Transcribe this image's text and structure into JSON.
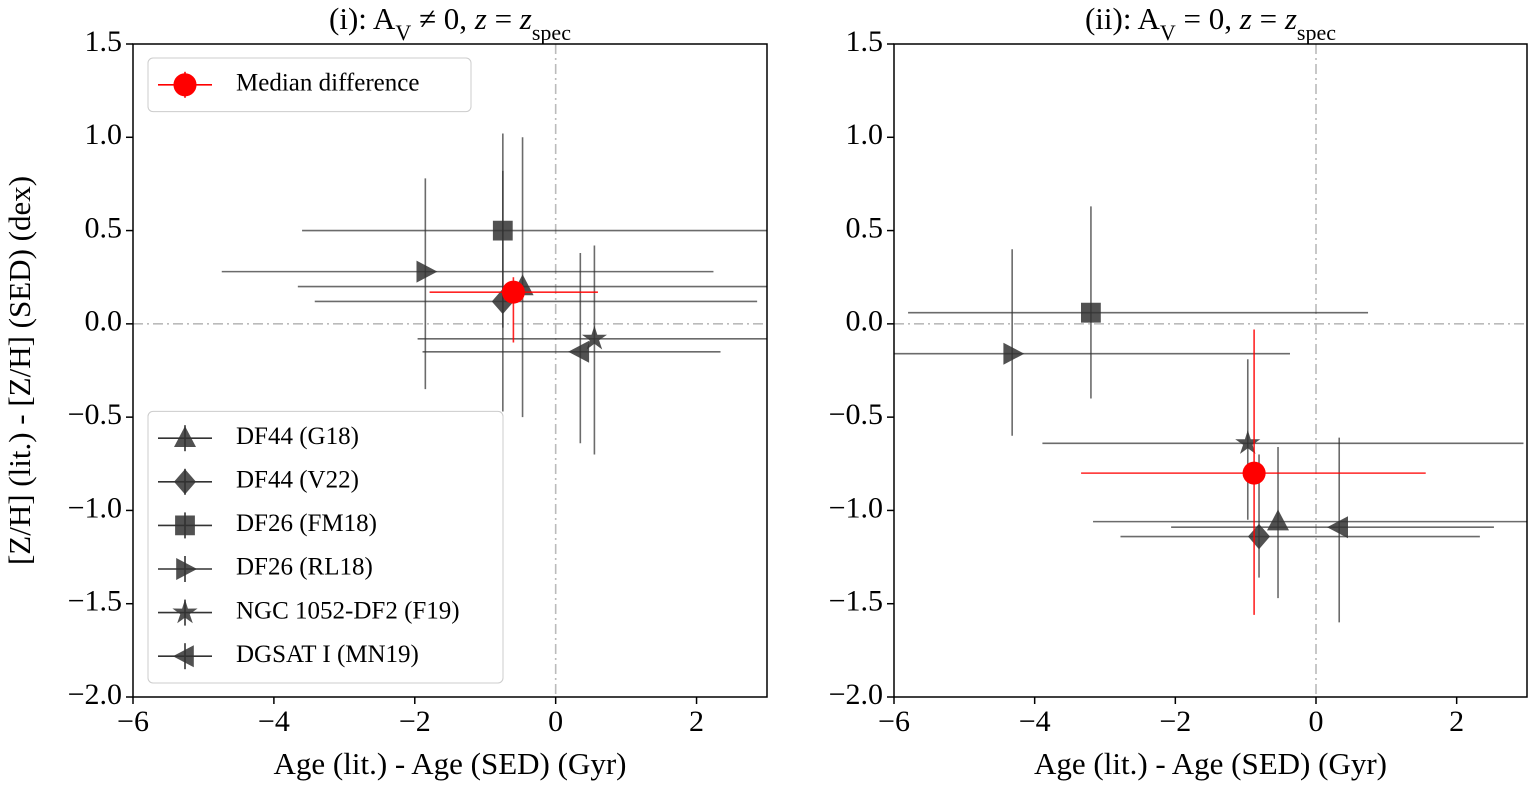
{
  "chart_data": [
    {
      "type": "scatter",
      "title": [
        {
          "text": "(i): A"
        },
        {
          "text": "V",
          "sub": true
        },
        {
          "text": " ≠ 0, "
        },
        {
          "text": "z",
          "italic": true
        },
        {
          "text": " = "
        },
        {
          "text": "z",
          "italic": true
        },
        {
          "text": "spec",
          "sub": true
        }
      ],
      "xlabel": "Age (lit.) - Age (SED) (Gyr)",
      "ylabel": "[Z/H] (lit.) - [Z/H] (SED) (dex)",
      "xlim": [
        -6,
        3
      ],
      "ylim": [
        -2.0,
        1.5
      ],
      "xticks": [
        {
          "value": -6,
          "label": "−6"
        },
        {
          "value": -4,
          "label": "−4"
        },
        {
          "value": -2,
          "label": "−2"
        },
        0,
        2
      ],
      "yticks": [
        {
          "value": -2.0,
          "label": "−2.0"
        },
        {
          "value": -1.5,
          "label": "−1.5"
        },
        {
          "value": -1.0,
          "label": "−1.0"
        },
        {
          "value": -0.5,
          "label": "−0.5"
        },
        {
          "value": 0,
          "label": "0.0"
        },
        0.5,
        {
          "value": 1.0,
          "label": "1.0"
        },
        1.5
      ],
      "vline": 0,
      "hline": 0,
      "series": [
        {
          "name": "DF44 (G18)",
          "marker": "triangle-up",
          "color": "#333333",
          "legend": "lower left",
          "x": [
            -0.47
          ],
          "y": [
            0.2
          ],
          "x_range": [
            -3.66,
            3.3
          ],
          "y_range": [
            1.0,
            -0.5
          ]
        },
        {
          "name": "DF44 (V22)",
          "marker": "diamond",
          "color": "#333333",
          "legend": "lower left",
          "x": [
            -0.75
          ],
          "y": [
            0.12
          ],
          "x_range": [
            -3.42,
            2.86
          ],
          "y_range": [
            0.82,
            -0.47
          ]
        },
        {
          "name": "DF26 (FM18)",
          "marker": "square",
          "color": "#333333",
          "legend": "lower left",
          "x": [
            -0.75
          ],
          "y": [
            0.5
          ],
          "x_range": [
            -3.6,
            3.3
          ],
          "y_range": [
            1.02,
            -0.02
          ]
        },
        {
          "name": "DF26 (RL18)",
          "marker": "triangle-right",
          "color": "#333333",
          "legend": "lower left",
          "x": [
            -1.85
          ],
          "y": [
            0.28
          ],
          "x_range": [
            -4.74,
            2.24
          ],
          "y_range": [
            0.78,
            -0.35
          ]
        },
        {
          "name": "NGC 1052-DF2 (F19)",
          "marker": "star",
          "color": "#333333",
          "legend": "lower left",
          "x": [
            0.55
          ],
          "y": [
            -0.08
          ],
          "x_range": [
            -1.96,
            3.3
          ],
          "y_range": [
            0.42,
            -0.7
          ]
        },
        {
          "name": "DGSAT I (MN19)",
          "marker": "triangle-left",
          "color": "#333333",
          "legend": "lower left",
          "x": [
            0.35
          ],
          "y": [
            -0.15
          ],
          "x_range": [
            -1.89,
            2.34
          ],
          "y_range": [
            0.38,
            -0.64
          ]
        },
        {
          "name": "Median difference",
          "marker": "circle",
          "color": "#ff0000",
          "legend": "upper left",
          "x": [
            -0.6
          ],
          "y": [
            0.17
          ],
          "x_range": [
            -1.79,
            0.6
          ],
          "y_range": [
            0.25,
            -0.1
          ]
        }
      ]
    },
    {
      "type": "scatter",
      "title": [
        {
          "text": "(ii): A"
        },
        {
          "text": "V",
          "sub": true
        },
        {
          "text": " = 0, "
        },
        {
          "text": "z",
          "italic": true
        },
        {
          "text": " = "
        },
        {
          "text": "z",
          "italic": true
        },
        {
          "text": "spec",
          "sub": true
        }
      ],
      "xlabel": "Age (lit.) - Age (SED) (Gyr)",
      "xlim": [
        -6,
        3
      ],
      "ylim": [
        -2.0,
        1.5
      ],
      "xticks": [
        {
          "value": -6,
          "label": "−6"
        },
        {
          "value": -4,
          "label": "−4"
        },
        {
          "value": -2,
          "label": "−2"
        },
        0,
        2
      ],
      "yticks": [
        {
          "value": -2.0,
          "label": "−2.0"
        },
        {
          "value": -1.5,
          "label": "−1.5"
        },
        {
          "value": -1.0,
          "label": "−1.0"
        },
        {
          "value": -0.5,
          "label": "−0.5"
        },
        {
          "value": 0,
          "label": "0.0"
        },
        0.5,
        {
          "value": 1.0,
          "label": "1.0"
        },
        1.5
      ],
      "vline": 0,
      "hline": 0,
      "series": [
        {
          "marker": "triangle-up",
          "color": "#333333",
          "x": [
            -0.54
          ],
          "y": [
            -1.06
          ],
          "x_range": [
            -3.17,
            3.3
          ],
          "y_range": [
            -0.66,
            -1.47
          ]
        },
        {
          "marker": "diamond",
          "color": "#333333",
          "x": [
            -0.81
          ],
          "y": [
            -1.14
          ],
          "x_range": [
            -2.78,
            2.33
          ],
          "y_range": [
            -0.7,
            -1.36
          ]
        },
        {
          "marker": "square",
          "color": "#333333",
          "x": [
            -3.2
          ],
          "y": [
            0.06
          ],
          "x_range": [
            -5.8,
            0.74
          ],
          "y_range": [
            0.63,
            -0.4
          ]
        },
        {
          "marker": "triangle-right",
          "color": "#333333",
          "x": [
            -4.32
          ],
          "y": [
            -0.16
          ],
          "x_range": [
            -6.2,
            -0.37
          ],
          "y_range": [
            0.4,
            -0.6
          ]
        },
        {
          "marker": "star",
          "color": "#333333",
          "x": [
            -0.97
          ],
          "y": [
            -0.64
          ],
          "x_range": [
            -3.89,
            2.95
          ],
          "y_range": [
            -0.19,
            -1.05
          ]
        },
        {
          "marker": "triangle-left",
          "color": "#333333",
          "x": [
            0.33
          ],
          "y": [
            -1.09
          ],
          "x_range": [
            -2.06,
            2.53
          ],
          "y_range": [
            -0.61,
            -1.6
          ]
        },
        {
          "marker": "circle",
          "color": "#ff0000",
          "x": [
            -0.88
          ],
          "y": [
            -0.8
          ],
          "x_range": [
            -3.34,
            1.56
          ],
          "y_range": [
            -0.03,
            -1.56
          ]
        }
      ]
    }
  ]
}
